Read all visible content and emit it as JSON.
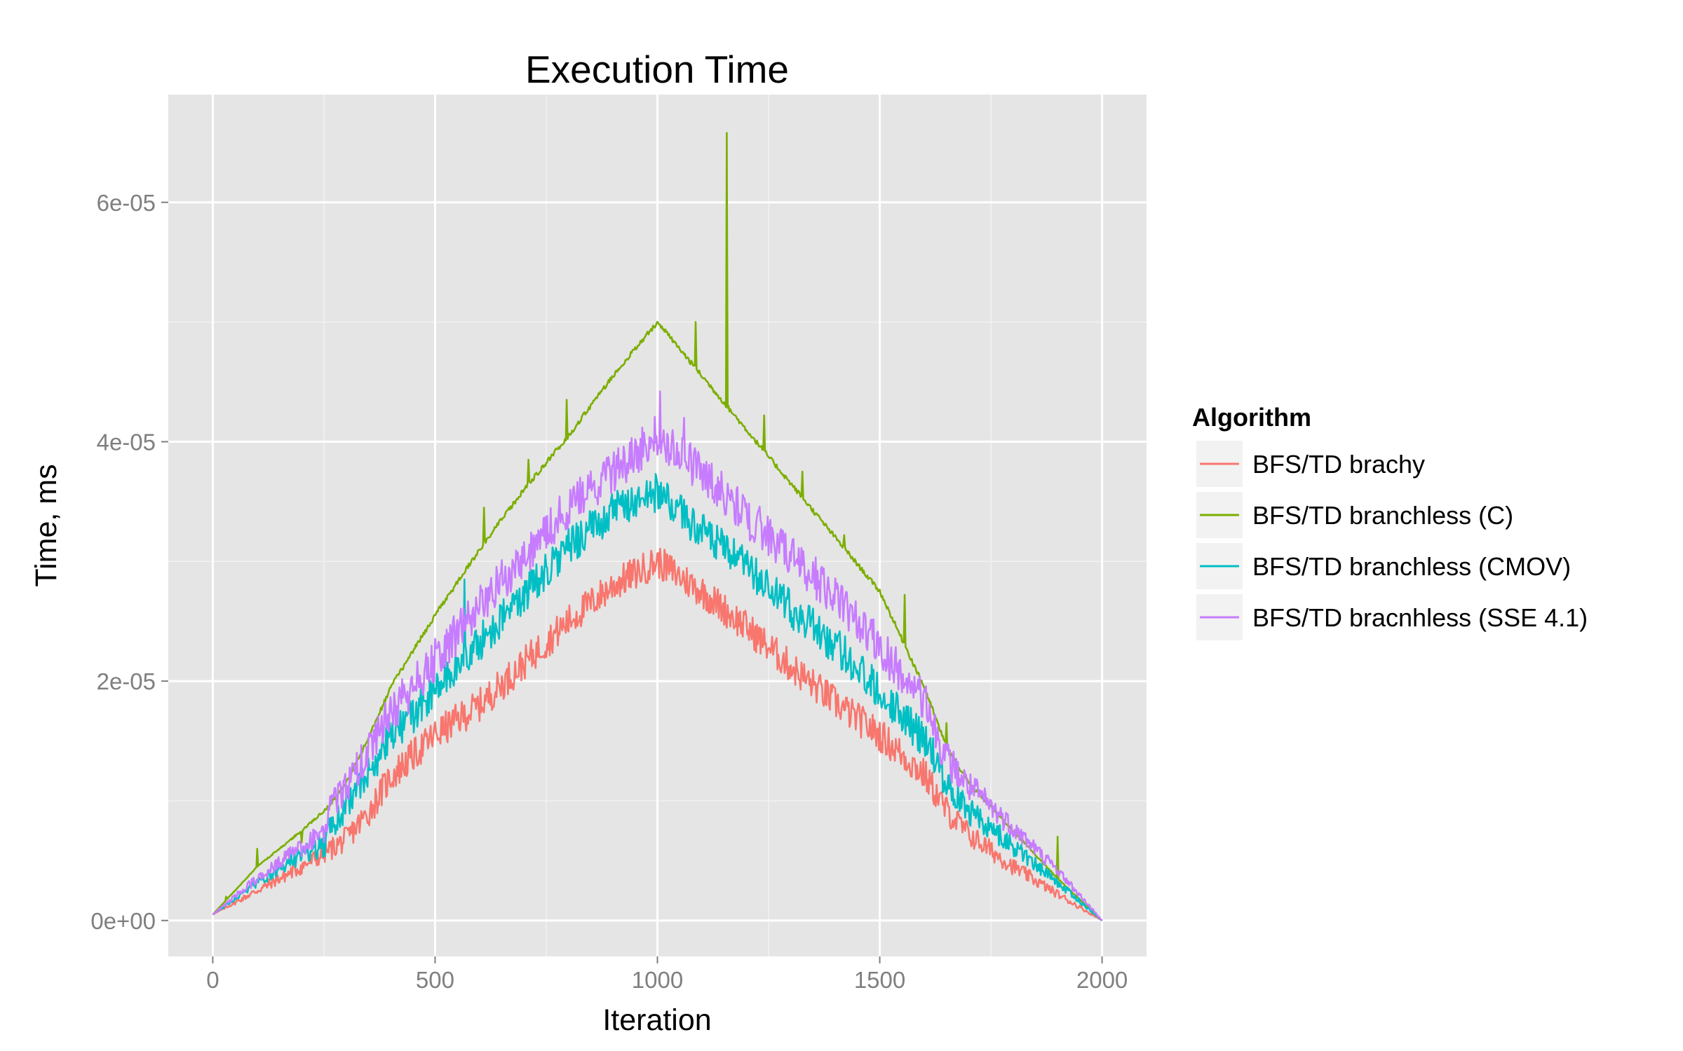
{
  "chart_data": {
    "type": "line",
    "title": "Execution Time",
    "xlabel": "Iteration",
    "ylabel": "Time, ms",
    "xlim": [
      -100,
      2100
    ],
    "ylim": [
      -3e-06,
      6.9e-05
    ],
    "x_ticks": [
      0,
      500,
      1000,
      1500,
      2000
    ],
    "x_tick_labels": [
      "0",
      "500",
      "1000",
      "1500",
      "2000"
    ],
    "y_ticks": [
      0,
      2e-05,
      4e-05,
      6e-05
    ],
    "y_tick_labels": [
      "0e+00",
      "2e-05",
      "4e-05",
      "6e-05"
    ],
    "grid": true,
    "legend": {
      "title": "Algorithm",
      "position": "right"
    },
    "series": [
      {
        "name": "BFS/TD brachy",
        "color": "#f8766d",
        "noise": 1.4e-06,
        "x": [
          0,
          100,
          200,
          250,
          300,
          350,
          400,
          500,
          600,
          700,
          800,
          900,
          1000,
          1100,
          1200,
          1300,
          1400,
          1500,
          1600,
          1650,
          1700,
          1800,
          1900,
          2000
        ],
        "y": [
          5e-07,
          2.5e-06,
          4.5e-06,
          5.6e-06,
          6.8e-06,
          9e-06,
          1.2e-05,
          1.55e-05,
          1.8e-05,
          2.15e-05,
          2.5e-05,
          2.8e-05,
          3e-05,
          2.75e-05,
          2.45e-05,
          2.12e-05,
          1.82e-05,
          1.55e-05,
          1.22e-05,
          9.2e-06,
          7.2e-06,
          4.5e-06,
          2.2e-06,
          0
        ]
      },
      {
        "name": "BFS/TD branchless (C)",
        "color": "#7cae00",
        "noise": 2e-07,
        "x": [
          0,
          100,
          200,
          260,
          300,
          350,
          400,
          500,
          600,
          700,
          800,
          900,
          1000,
          1100,
          1200,
          1300,
          1400,
          1500,
          1600,
          1650,
          1700,
          1800,
          1900,
          2000
        ],
        "y": [
          5e-07,
          4.5e-06,
          7.5e-06,
          9.5e-06,
          1.15e-05,
          1.52e-05,
          1.95e-05,
          2.55e-05,
          3.1e-05,
          3.6e-05,
          4.05e-05,
          4.55e-05,
          5e-05,
          4.55e-05,
          4.1e-05,
          3.65e-05,
          3.2e-05,
          2.75e-05,
          1.95e-05,
          1.45e-05,
          1.15e-05,
          7.5e-06,
          3.5e-06,
          0
        ],
        "spikes": [
          [
            30,
            2e-06
          ],
          [
            100,
            6e-06
          ],
          [
            200,
            6.5e-06
          ],
          [
            610,
            3.45e-05
          ],
          [
            710,
            3.85e-05
          ],
          [
            795,
            4.35e-05
          ],
          [
            1085,
            5e-05
          ],
          [
            1155,
            6.58e-05
          ],
          [
            1240,
            4.22e-05
          ],
          [
            1325,
            3.75e-05
          ],
          [
            1420,
            3.22e-05
          ],
          [
            1555,
            2.72e-05
          ],
          [
            1650,
            1.65e-05
          ],
          [
            1900,
            7e-06
          ]
        ]
      },
      {
        "name": "BFS/TD branchless (CMOV)",
        "color": "#00bfc4",
        "noise": 1.6e-06,
        "x": [
          0,
          100,
          200,
          255,
          260,
          300,
          350,
          400,
          500,
          600,
          700,
          800,
          900,
          1000,
          1100,
          1200,
          1300,
          1400,
          1500,
          1600,
          1650,
          1700,
          1800,
          1900,
          2000
        ],
        "y": [
          5e-07,
          3.2e-06,
          5.5e-06,
          6.4e-06,
          7.5e-06,
          9.5e-06,
          1.25e-05,
          1.52e-05,
          1.92e-05,
          2.32e-05,
          2.72e-05,
          3.12e-05,
          3.42e-05,
          3.58e-05,
          3.25e-05,
          2.95e-05,
          2.6e-05,
          2.3e-05,
          1.92e-05,
          1.52e-05,
          1.15e-05,
          9.2e-06,
          6.2e-06,
          3.2e-06,
          0
        ],
        "spikes": [
          [
            565,
            2.85e-05
          ]
        ]
      },
      {
        "name": "BFS/TD bracnhless (SSE 4.1)",
        "color": "#c77cff",
        "noise": 1.8e-06,
        "x": [
          0,
          100,
          200,
          255,
          260,
          300,
          350,
          400,
          500,
          600,
          700,
          800,
          900,
          1000,
          1100,
          1200,
          1300,
          1400,
          1500,
          1600,
          1650,
          1700,
          1800,
          1900,
          2000
        ],
        "y": [
          5e-07,
          3.5e-06,
          6.2e-06,
          7.2e-06,
          9.2e-06,
          1.12e-05,
          1.42e-05,
          1.72e-05,
          2.18e-05,
          2.62e-05,
          3.05e-05,
          3.45e-05,
          3.75e-05,
          4.05e-05,
          3.75e-05,
          3.38e-05,
          3.05e-05,
          2.72e-05,
          2.28e-05,
          1.82e-05,
          1.35e-05,
          1.12e-05,
          7.8e-06,
          4.2e-06,
          0
        ],
        "spikes": [
          [
            1005,
            4.42e-05
          ],
          [
            1060,
            4.2e-05
          ]
        ]
      }
    ]
  }
}
